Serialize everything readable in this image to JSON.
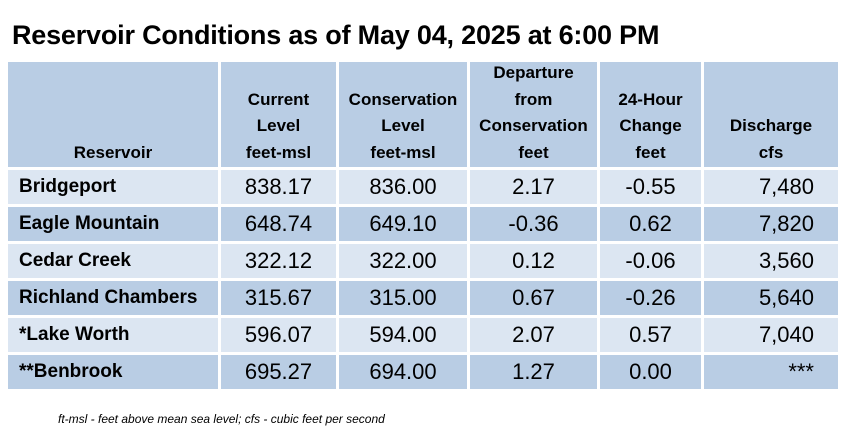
{
  "title": "Reservoir Conditions as of May 04, 2025 at 6:00 PM",
  "columns": [
    {
      "lines": [
        "Reservoir"
      ]
    },
    {
      "lines": [
        "Current",
        "Level",
        "feet-msl"
      ]
    },
    {
      "lines": [
        "Conservation",
        "Level",
        "feet-msl"
      ]
    },
    {
      "lines": [
        "Departure",
        "from",
        "Conservation",
        "feet"
      ]
    },
    {
      "lines": [
        "24-Hour",
        "Change",
        "feet"
      ]
    },
    {
      "lines": [
        "Discharge",
        "cfs"
      ]
    }
  ],
  "rows": [
    {
      "name": "Bridgeport",
      "current": "838.17",
      "conservation": "836.00",
      "departure": "2.17",
      "change": "-0.55",
      "discharge": "7,480"
    },
    {
      "name": "Eagle Mountain",
      "current": "648.74",
      "conservation": "649.10",
      "departure": "-0.36",
      "change": "0.62",
      "discharge": "7,820"
    },
    {
      "name": "Cedar Creek",
      "current": "322.12",
      "conservation": "322.00",
      "departure": "0.12",
      "change": "-0.06",
      "discharge": "3,560"
    },
    {
      "name": "Richland Chambers",
      "current": "315.67",
      "conservation": "315.00",
      "departure": "0.67",
      "change": "-0.26",
      "discharge": "5,640"
    },
    {
      "name": "*Lake Worth",
      "current": "596.07",
      "conservation": "594.00",
      "departure": "2.07",
      "change": "0.57",
      "discharge": "7,040"
    },
    {
      "name": "**Benbrook",
      "current": "695.27",
      "conservation": "694.00",
      "departure": "1.27",
      "change": "0.00",
      "discharge": "***"
    }
  ],
  "footnote": "ft-msl - feet above mean sea level; cfs - cubic feet per second",
  "colors": {
    "header_bg": "#b9cde4",
    "row_light": "#dce6f2",
    "row_dark": "#b9cde4"
  }
}
